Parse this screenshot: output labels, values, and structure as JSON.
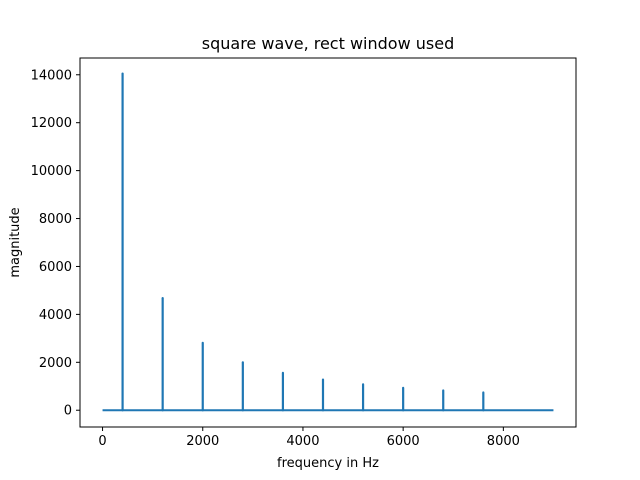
{
  "chart_data": {
    "type": "line",
    "title": "square wave, rect window used",
    "xlabel": "frequency in Hz",
    "ylabel": "magnitude",
    "xlim": [
      -450,
      9450
    ],
    "ylim": [
      -700,
      14700
    ],
    "x_range": [
      0,
      9000
    ],
    "baseline": 0,
    "x_ticks": [
      0,
      2000,
      4000,
      6000,
      8000
    ],
    "y_ticks": [
      0,
      2000,
      4000,
      6000,
      8000,
      10000,
      12000,
      14000
    ],
    "grid": false,
    "color": "#1f77b4",
    "peaks": [
      {
        "x": 400,
        "y": 14050
      },
      {
        "x": 1200,
        "y": 4680
      },
      {
        "x": 2000,
        "y": 2810
      },
      {
        "x": 2800,
        "y": 2000
      },
      {
        "x": 3600,
        "y": 1560
      },
      {
        "x": 4400,
        "y": 1280
      },
      {
        "x": 5200,
        "y": 1080
      },
      {
        "x": 6000,
        "y": 935
      },
      {
        "x": 6800,
        "y": 825
      },
      {
        "x": 7600,
        "y": 740
      }
    ]
  }
}
